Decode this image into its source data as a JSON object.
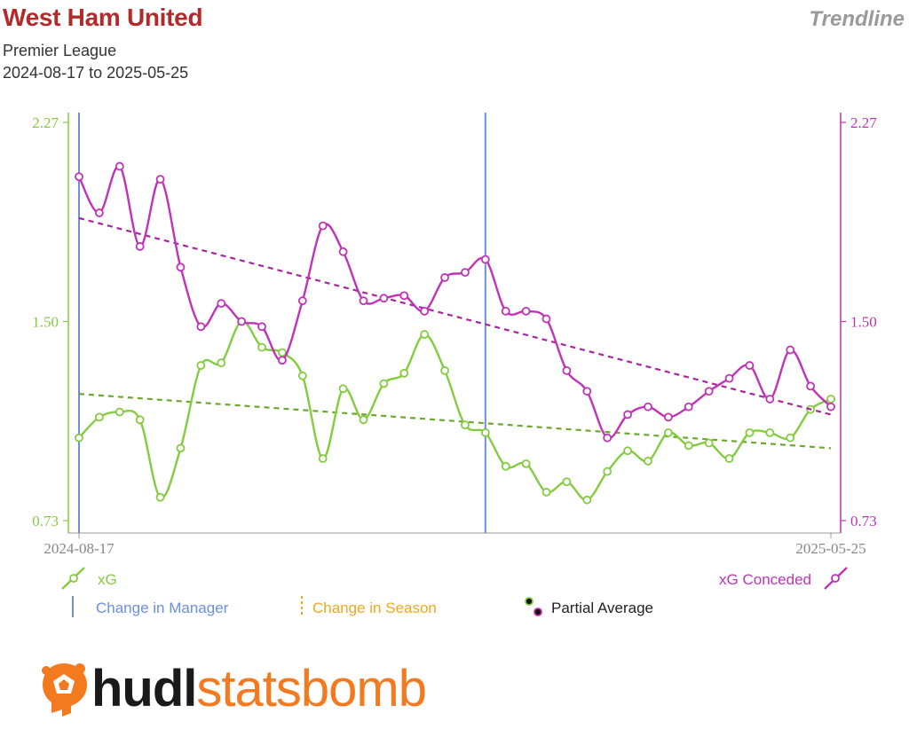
{
  "header": {
    "title": "West Ham United",
    "subtitle": "Premier League",
    "date_range": "2024-08-17 to 2025-05-25",
    "tag": "Trendline"
  },
  "legend": {
    "xg": "xG",
    "xg_conceded": "xG Conceded",
    "manager_change": "Change in Manager",
    "season_change": "Change in Season",
    "partial_average": "Partial Average"
  },
  "logo": {
    "part1": "hudl",
    "part2": "statsbomb"
  },
  "chart_data": {
    "type": "line",
    "x_tick_labels": [
      "2024-08-17",
      "2025-05-25"
    ],
    "y_ticks": [
      0.73,
      1.5,
      2.27
    ],
    "ylim": [
      0.73,
      2.27
    ],
    "y_tick_labels": [
      "0.73",
      "1.50",
      "2.27"
    ],
    "manager_change_matches": [
      1,
      21
    ],
    "series": [
      {
        "name": "xG",
        "color": "#84cc3f",
        "values": [
          1.05,
          1.13,
          1.15,
          1.12,
          0.82,
          1.01,
          1.33,
          1.34,
          1.5,
          1.4,
          1.38,
          1.29,
          0.97,
          1.24,
          1.12,
          1.26,
          1.3,
          1.45,
          1.31,
          1.1,
          1.07,
          0.94,
          0.95,
          0.84,
          0.88,
          0.81,
          0.92,
          1.0,
          0.96,
          1.07,
          1.02,
          1.03,
          0.97,
          1.07,
          1.07,
          1.05,
          1.16,
          1.2
        ],
        "trend": [
          1.22,
          1.01
        ]
      },
      {
        "name": "xG Conceded",
        "color": "#c033b8",
        "values": [
          2.06,
          1.92,
          2.1,
          1.79,
          2.05,
          1.71,
          1.48,
          1.57,
          1.5,
          1.48,
          1.35,
          1.58,
          1.87,
          1.77,
          1.58,
          1.59,
          1.6,
          1.54,
          1.67,
          1.69,
          1.74,
          1.54,
          1.54,
          1.51,
          1.31,
          1.23,
          1.05,
          1.14,
          1.17,
          1.13,
          1.17,
          1.23,
          1.28,
          1.33,
          1.2,
          1.39,
          1.25,
          1.17
        ],
        "trend": [
          1.9,
          1.14
        ]
      }
    ]
  }
}
